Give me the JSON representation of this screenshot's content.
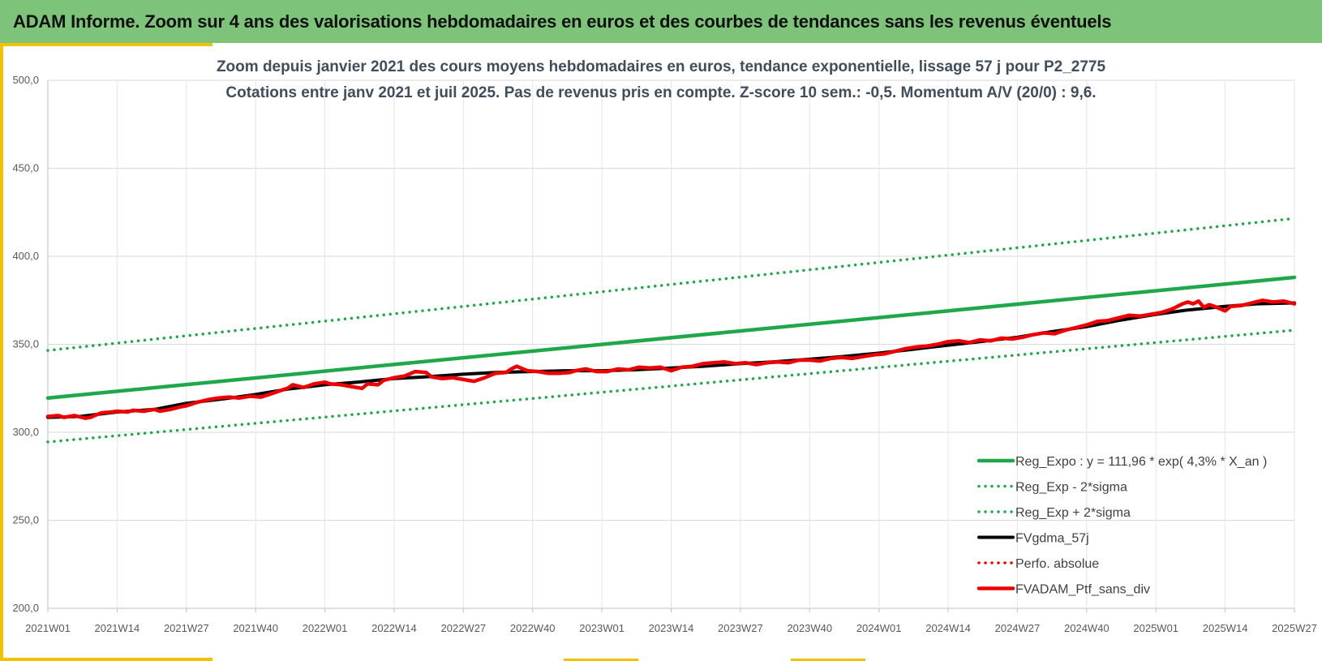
{
  "header": {
    "title": "ADAM Informe. Zoom sur 4 ans des valorisations hebdomadaires en euros et des courbes de tendances sans les revenus éventuels"
  },
  "colors": {
    "header_bg": "#7dc47a",
    "accent": "#f2c200",
    "trend_green": "#1fa84a",
    "smooth_black": "#000000",
    "portfolio_red": "#ee0000"
  },
  "chart_data": {
    "type": "line",
    "title_line1": "Zoom depuis janvier 2021 des cours moyens hebdomadaires  en euros, tendance exponentielle, lissage 57 j pour P2_2775",
    "title_line2": "Cotations  entre janv 2021 et juil 2025. Pas de revenus pris en compte. Z-score 10 sem.: -0,5. Momentum A/V (20/0) : 9,6.",
    "ylim": [
      200,
      500
    ],
    "y_ticks": [
      "200,0",
      "250,0",
      "300,0",
      "350,0",
      "400,0",
      "450,0",
      "500,0"
    ],
    "x_range": [
      0,
      234
    ],
    "x_ticks": [
      {
        "label": "2021W01",
        "x": 0
      },
      {
        "label": "2021W14",
        "x": 13
      },
      {
        "label": "2021W27",
        "x": 26
      },
      {
        "label": "2021W40",
        "x": 39
      },
      {
        "label": "2022W01",
        "x": 52
      },
      {
        "label": "2022W14",
        "x": 65
      },
      {
        "label": "2022W27",
        "x": 78
      },
      {
        "label": "2022W40",
        "x": 91
      },
      {
        "label": "2023W01",
        "x": 104
      },
      {
        "label": "2023W14",
        "x": 117
      },
      {
        "label": "2023W27",
        "x": 130
      },
      {
        "label": "2023W40",
        "x": 143
      },
      {
        "label": "2024W01",
        "x": 156
      },
      {
        "label": "2024W14",
        "x": 169
      },
      {
        "label": "2024W27",
        "x": 182
      },
      {
        "label": "2024W40",
        "x": 195
      },
      {
        "label": "2025W01",
        "x": 208
      },
      {
        "label": "2025W14",
        "x": 221
      },
      {
        "label": "2025W27",
        "x": 234
      }
    ],
    "grid": true,
    "legend_position": "bottom-right",
    "series": [
      {
        "name": "Reg_Expo : y = 111,96 * exp( 4,3% *  X_an )",
        "style": "solid",
        "color": "#1fa84a",
        "points": [
          [
            0,
            319.5
          ],
          [
            234,
            388.0
          ]
        ]
      },
      {
        "name": "Reg_Exp - 2*sigma",
        "style": "dotted",
        "color": "#1fa84a",
        "points": [
          [
            0,
            294.5
          ],
          [
            234,
            358.0
          ]
        ]
      },
      {
        "name": "Reg_Exp + 2*sigma",
        "style": "dotted",
        "color": "#1fa84a",
        "points": [
          [
            0,
            346.5
          ],
          [
            234,
            421.5
          ]
        ]
      },
      {
        "name": "FVgdma_57j",
        "style": "solid",
        "color": "#000000",
        "points": [
          [
            0,
            308.5
          ],
          [
            6,
            309
          ],
          [
            13,
            311.5
          ],
          [
            20,
            313
          ],
          [
            26,
            316.5
          ],
          [
            33,
            319
          ],
          [
            39,
            321.5
          ],
          [
            45,
            324.5
          ],
          [
            52,
            327
          ],
          [
            58,
            328.5
          ],
          [
            65,
            330.5
          ],
          [
            71,
            331.5
          ],
          [
            78,
            333
          ],
          [
            84,
            334
          ],
          [
            91,
            334.5
          ],
          [
            97,
            335
          ],
          [
            104,
            335
          ],
          [
            110,
            335.5
          ],
          [
            117,
            336.5
          ],
          [
            123,
            337.5
          ],
          [
            130,
            339
          ],
          [
            136,
            340
          ],
          [
            143,
            341.5
          ],
          [
            149,
            343
          ],
          [
            156,
            345
          ],
          [
            162,
            347
          ],
          [
            169,
            349.5
          ],
          [
            175,
            351.5
          ],
          [
            182,
            354
          ],
          [
            188,
            357
          ],
          [
            195,
            360
          ],
          [
            201,
            363.5
          ],
          [
            208,
            367
          ],
          [
            214,
            369.5
          ],
          [
            221,
            371.5
          ],
          [
            227,
            373
          ],
          [
            234,
            373.5
          ]
        ]
      },
      {
        "name": "Perfo. absolue",
        "style": "dotted",
        "color": "#ee0000",
        "points": []
      },
      {
        "name": "FVADAM_Ptf_sans_div",
        "style": "solid",
        "color": "#ee0000",
        "points": [
          [
            0,
            309
          ],
          [
            2,
            309.5
          ],
          [
            3,
            308.5
          ],
          [
            5,
            309.5
          ],
          [
            7,
            308
          ],
          [
            8,
            308.5
          ],
          [
            10,
            311
          ],
          [
            12,
            311.5
          ],
          [
            13,
            312
          ],
          [
            15,
            311.5
          ],
          [
            16,
            312.5
          ],
          [
            18,
            312
          ],
          [
            20,
            313
          ],
          [
            21,
            312
          ],
          [
            23,
            313
          ],
          [
            25,
            314.5
          ],
          [
            26,
            315
          ],
          [
            28,
            317
          ],
          [
            30,
            318.5
          ],
          [
            32,
            319.5
          ],
          [
            34,
            320
          ],
          [
            36,
            319.5
          ],
          [
            38,
            320.5
          ],
          [
            40,
            320
          ],
          [
            42,
            322
          ],
          [
            44,
            324
          ],
          [
            45,
            325
          ],
          [
            46,
            327
          ],
          [
            48,
            325.5
          ],
          [
            50,
            327.5
          ],
          [
            52,
            328.5
          ],
          [
            53,
            327.5
          ],
          [
            55,
            327
          ],
          [
            57,
            326
          ],
          [
            59,
            325
          ],
          [
            60,
            327.5
          ],
          [
            62,
            327
          ],
          [
            63,
            329.5
          ],
          [
            65,
            331
          ],
          [
            67,
            332
          ],
          [
            69,
            334.5
          ],
          [
            71,
            334
          ],
          [
            72,
            331.5
          ],
          [
            74,
            330.5
          ],
          [
            76,
            331
          ],
          [
            78,
            330
          ],
          [
            80,
            329
          ],
          [
            82,
            331
          ],
          [
            84,
            333.5
          ],
          [
            86,
            334
          ],
          [
            87,
            336
          ],
          [
            88,
            337.5
          ],
          [
            90,
            335
          ],
          [
            92,
            334.5
          ],
          [
            94,
            333.5
          ],
          [
            96,
            333.5
          ],
          [
            98,
            334
          ],
          [
            99,
            335
          ],
          [
            101,
            336
          ],
          [
            103,
            334.5
          ],
          [
            105,
            334.5
          ],
          [
            107,
            336
          ],
          [
            109,
            335.5
          ],
          [
            111,
            337
          ],
          [
            113,
            336.5
          ],
          [
            115,
            337
          ],
          [
            117,
            335
          ],
          [
            119,
            337
          ],
          [
            121,
            337.5
          ],
          [
            123,
            339
          ],
          [
            125,
            339.5
          ],
          [
            127,
            340
          ],
          [
            129,
            339
          ],
          [
            131,
            339.5
          ],
          [
            133,
            338.5
          ],
          [
            135,
            339.5
          ],
          [
            137,
            340
          ],
          [
            139,
            339.5
          ],
          [
            141,
            341
          ],
          [
            143,
            341
          ],
          [
            145,
            340.5
          ],
          [
            147,
            342
          ],
          [
            149,
            342.5
          ],
          [
            151,
            342
          ],
          [
            153,
            343
          ],
          [
            155,
            344
          ],
          [
            157,
            344.5
          ],
          [
            159,
            346
          ],
          [
            161,
            347.5
          ],
          [
            163,
            348.5
          ],
          [
            165,
            349
          ],
          [
            167,
            350
          ],
          [
            169,
            351.5
          ],
          [
            171,
            352
          ],
          [
            173,
            351
          ],
          [
            175,
            352.5
          ],
          [
            177,
            352
          ],
          [
            179,
            353.5
          ],
          [
            181,
            353
          ],
          [
            183,
            354
          ],
          [
            185,
            355.5
          ],
          [
            187,
            356.5
          ],
          [
            189,
            356
          ],
          [
            191,
            358
          ],
          [
            193,
            359.5
          ],
          [
            195,
            361
          ],
          [
            197,
            363
          ],
          [
            199,
            363.5
          ],
          [
            201,
            365
          ],
          [
            203,
            366.5
          ],
          [
            205,
            366
          ],
          [
            207,
            367
          ],
          [
            209,
            368
          ],
          [
            211,
            370
          ],
          [
            213,
            373
          ],
          [
            214,
            374
          ],
          [
            215,
            373
          ],
          [
            216,
            374.5
          ],
          [
            217,
            371
          ],
          [
            218,
            372.5
          ],
          [
            219,
            371.5
          ],
          [
            221,
            369
          ],
          [
            222,
            371.5
          ],
          [
            224,
            372
          ],
          [
            226,
            373.5
          ],
          [
            228,
            375
          ],
          [
            230,
            374
          ],
          [
            232,
            374.5
          ],
          [
            234,
            373
          ]
        ]
      }
    ]
  }
}
